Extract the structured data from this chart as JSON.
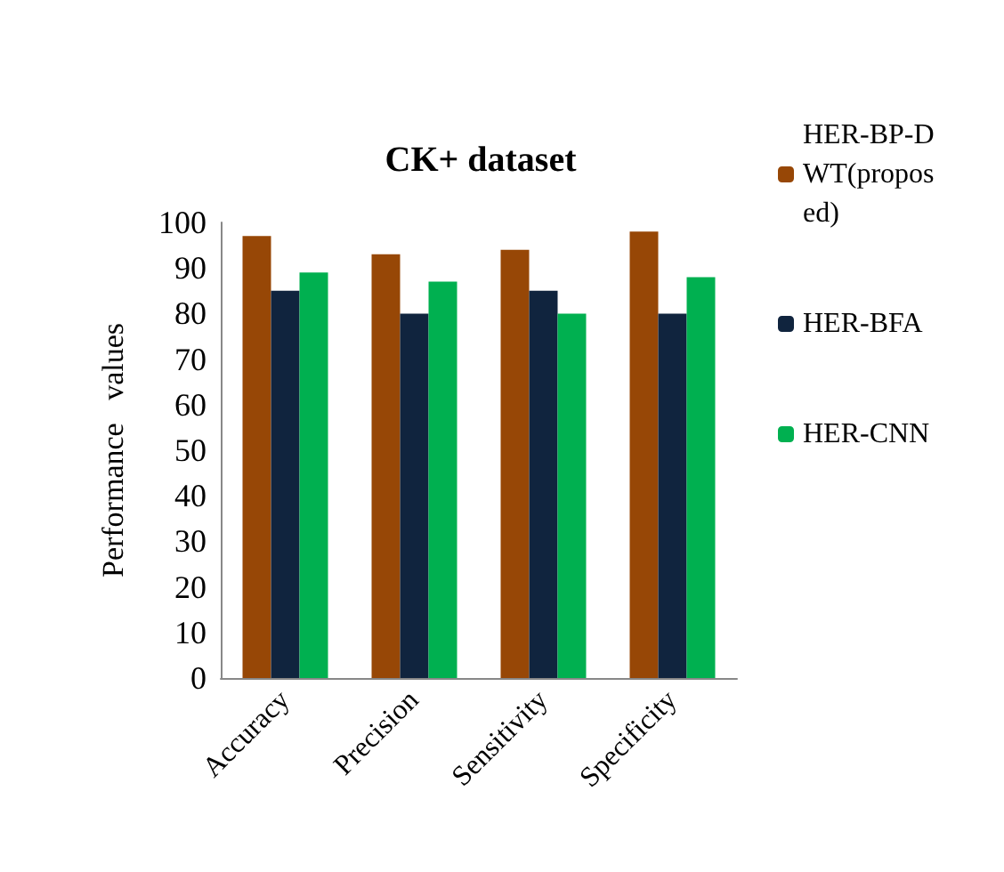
{
  "chart_data": {
    "type": "bar",
    "title": "CK+ dataset",
    "ylabel": "Performance   values",
    "categories": [
      "Accuracy",
      "Precision",
      "Sensitivity",
      "Specificity"
    ],
    "series": [
      {
        "name": "HER-BP-DWT(proposed)",
        "color": "#974706",
        "values": [
          97,
          93,
          94,
          98
        ]
      },
      {
        "name": "HER-BFA",
        "color": "#10243e",
        "values": [
          85,
          80,
          85,
          80
        ]
      },
      {
        "name": "HER-CNN",
        "color": "#00b050",
        "values": [
          89,
          87,
          80,
          88
        ]
      }
    ],
    "ylim": [
      0,
      100
    ],
    "yticks": [
      0,
      10,
      20,
      30,
      40,
      50,
      60,
      70,
      80,
      90,
      100
    ],
    "grid": false,
    "legend": "top right"
  }
}
